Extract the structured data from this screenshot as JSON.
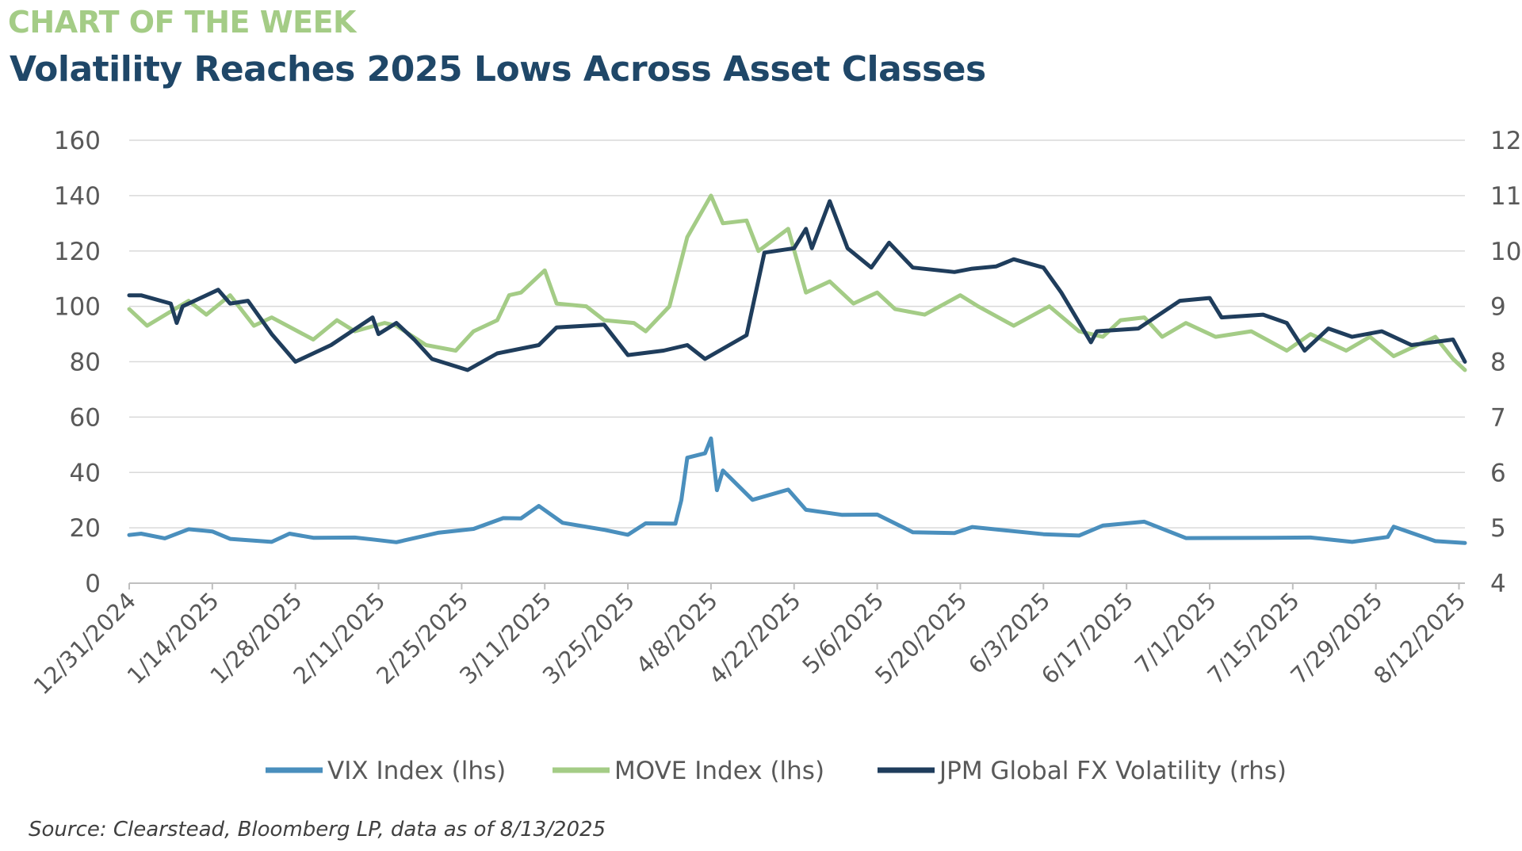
{
  "header": {
    "kicker": "CHART OF THE WEEK",
    "title": "Volatility Reaches 2025 Lows Across Asset Classes"
  },
  "footer": {
    "source": "Source: Clearstead, Bloomberg LP, data as of 8/13/2025"
  },
  "colors": {
    "vix": "#4a8fbd",
    "move": "#a4cc86",
    "fx": "#1f3d5c",
    "grid": "#d9d9d9",
    "axis_text": "#595959"
  },
  "chart_data": {
    "type": "line",
    "x_type": "date",
    "x_range": [
      "12/31/2024",
      "8/13/2025"
    ],
    "x_ticks": [
      "12/31/2024",
      "1/14/2025",
      "1/28/2025",
      "2/11/2025",
      "2/25/2025",
      "3/11/2025",
      "3/25/2025",
      "4/8/2025",
      "4/22/2025",
      "5/6/2025",
      "5/20/2025",
      "6/3/2025",
      "6/17/2025",
      "7/1/2025",
      "7/15/2025",
      "7/29/2025",
      "8/12/2025"
    ],
    "y_left": {
      "min": 0,
      "max": 160,
      "ticks": [
        0,
        20,
        40,
        60,
        80,
        100,
        120,
        140,
        160
      ]
    },
    "y_right": {
      "min": 4,
      "max": 12,
      "ticks": [
        4,
        5,
        6,
        7,
        8,
        9,
        10,
        11,
        12
      ]
    },
    "grid": true,
    "legend_position": "bottom",
    "series": [
      {
        "name": "VIX Index (lhs)",
        "axis": "left",
        "points": [
          [
            "12/31/2024",
            17.4
          ],
          [
            "1/2/2025",
            17.9
          ],
          [
            "1/6/2025",
            16.2
          ],
          [
            "1/10/2025",
            19.5
          ],
          [
            "1/14/2025",
            18.7
          ],
          [
            "1/17/2025",
            16.0
          ],
          [
            "1/24/2025",
            14.9
          ],
          [
            "1/27/2025",
            17.9
          ],
          [
            "1/31/2025",
            16.4
          ],
          [
            "2/7/2025",
            16.5
          ],
          [
            "2/10/2025",
            15.8
          ],
          [
            "2/14/2025",
            14.8
          ],
          [
            "2/21/2025",
            18.2
          ],
          [
            "2/27/2025",
            19.6
          ],
          [
            "3/4/2025",
            23.5
          ],
          [
            "3/7/2025",
            23.4
          ],
          [
            "3/10/2025",
            27.9
          ],
          [
            "3/14/2025",
            21.8
          ],
          [
            "3/21/2025",
            19.3
          ],
          [
            "3/25/2025",
            17.5
          ],
          [
            "3/28/2025",
            21.6
          ],
          [
            "4/2/2025",
            21.5
          ],
          [
            "4/3/2025",
            30.0
          ],
          [
            "4/4/2025",
            45.3
          ],
          [
            "4/7/2025",
            46.9
          ],
          [
            "4/8/2025",
            52.3
          ],
          [
            "4/9/2025",
            33.6
          ],
          [
            "4/10/2025",
            40.7
          ],
          [
            "4/15/2025",
            30.1
          ],
          [
            "4/21/2025",
            33.8
          ],
          [
            "4/24/2025",
            26.5
          ],
          [
            "4/30/2025",
            24.7
          ],
          [
            "5/6/2025",
            24.8
          ],
          [
            "5/12/2025",
            18.4
          ],
          [
            "5/19/2025",
            18.1
          ],
          [
            "5/22/2025",
            20.3
          ],
          [
            "6/3/2025",
            17.7
          ],
          [
            "6/9/2025",
            17.2
          ],
          [
            "6/13/2025",
            20.8
          ],
          [
            "6/20/2025",
            22.2
          ],
          [
            "6/27/2025",
            16.3
          ],
          [
            "7/11/2025",
            16.4
          ],
          [
            "7/18/2025",
            16.5
          ],
          [
            "7/25/2025",
            14.9
          ],
          [
            "7/31/2025",
            16.7
          ],
          [
            "8/1/2025",
            20.4
          ],
          [
            "8/8/2025",
            15.2
          ],
          [
            "8/13/2025",
            14.5
          ]
        ]
      },
      {
        "name": "MOVE Index (lhs)",
        "axis": "left",
        "points": [
          [
            "12/31/2024",
            99
          ],
          [
            "1/3/2025",
            93
          ],
          [
            "1/10/2025",
            102
          ],
          [
            "1/13/2025",
            97
          ],
          [
            "1/17/2025",
            104
          ],
          [
            "1/21/2025",
            93
          ],
          [
            "1/24/2025",
            96
          ],
          [
            "1/31/2025",
            88
          ],
          [
            "2/4/2025",
            95
          ],
          [
            "2/7/2025",
            91
          ],
          [
            "2/12/2025",
            94
          ],
          [
            "2/14/2025",
            93
          ],
          [
            "2/19/2025",
            86
          ],
          [
            "2/24/2025",
            84
          ],
          [
            "2/27/2025",
            91
          ],
          [
            "3/3/2025",
            95
          ],
          [
            "3/5/2025",
            104
          ],
          [
            "3/7/2025",
            105
          ],
          [
            "3/11/2025",
            113
          ],
          [
            "3/13/2025",
            101
          ],
          [
            "3/18/2025",
            100
          ],
          [
            "3/21/2025",
            95
          ],
          [
            "3/26/2025",
            94
          ],
          [
            "3/28/2025",
            91
          ],
          [
            "4/1/2025",
            100
          ],
          [
            "4/4/2025",
            125
          ],
          [
            "4/8/2025",
            140
          ],
          [
            "4/10/2025",
            130
          ],
          [
            "4/14/2025",
            131
          ],
          [
            "4/16/2025",
            120
          ],
          [
            "4/21/2025",
            128
          ],
          [
            "4/24/2025",
            105
          ],
          [
            "4/28/2025",
            109
          ],
          [
            "5/2/2025",
            101
          ],
          [
            "5/6/2025",
            105
          ],
          [
            "5/9/2025",
            99
          ],
          [
            "5/14/2025",
            97
          ],
          [
            "5/20/2025",
            104
          ],
          [
            "5/23/2025",
            100
          ],
          [
            "5/29/2025",
            93
          ],
          [
            "6/4/2025",
            100
          ],
          [
            "6/9/2025",
            91
          ],
          [
            "6/13/2025",
            89
          ],
          [
            "6/16/2025",
            95
          ],
          [
            "6/20/2025",
            96
          ],
          [
            "6/23/2025",
            89
          ],
          [
            "6/27/2025",
            94
          ],
          [
            "7/2/2025",
            89
          ],
          [
            "7/8/2025",
            91
          ],
          [
            "7/14/2025",
            84
          ],
          [
            "7/18/2025",
            90
          ],
          [
            "7/24/2025",
            84
          ],
          [
            "7/28/2025",
            89
          ],
          [
            "8/1/2025",
            82
          ],
          [
            "8/8/2025",
            89
          ],
          [
            "8/11/2025",
            81
          ],
          [
            "8/13/2025",
            77
          ]
        ]
      },
      {
        "name": "JPM Global FX Volatility (rhs)",
        "axis": "right",
        "points": [
          [
            "12/31/2024",
            9.2
          ],
          [
            "1/2/2025",
            9.2
          ],
          [
            "1/7/2025",
            9.05
          ],
          [
            "1/8/2025",
            8.7
          ],
          [
            "1/9/2025",
            9.0
          ],
          [
            "1/15/2025",
            9.3
          ],
          [
            "1/17/2025",
            9.05
          ],
          [
            "1/20/2025",
            9.1
          ],
          [
            "1/24/2025",
            8.5
          ],
          [
            "1/28/2025",
            8.0
          ],
          [
            "2/3/2025",
            8.3
          ],
          [
            "2/10/2025",
            8.8
          ],
          [
            "2/11/2025",
            8.5
          ],
          [
            "2/14/2025",
            8.7
          ],
          [
            "2/17/2025",
            8.4
          ],
          [
            "2/20/2025",
            8.05
          ],
          [
            "2/26/2025",
            7.85
          ],
          [
            "3/3/2025",
            8.15
          ],
          [
            "3/10/2025",
            8.3
          ],
          [
            "3/13/2025",
            8.62
          ],
          [
            "3/21/2025",
            8.67
          ],
          [
            "3/25/2025",
            8.12
          ],
          [
            "3/31/2025",
            8.2
          ],
          [
            "4/4/2025",
            8.3
          ],
          [
            "4/7/2025",
            8.05
          ],
          [
            "4/14/2025",
            8.48
          ],
          [
            "4/17/2025",
            9.97
          ],
          [
            "4/22/2025",
            10.05
          ],
          [
            "4/24/2025",
            10.4
          ],
          [
            "4/25/2025",
            10.05
          ],
          [
            "4/28/2025",
            10.9
          ],
          [
            "5/1/2025",
            10.05
          ],
          [
            "5/5/2025",
            9.7
          ],
          [
            "5/8/2025",
            10.15
          ],
          [
            "5/12/2025",
            9.7
          ],
          [
            "5/19/2025",
            9.62
          ],
          [
            "5/22/2025",
            9.68
          ],
          [
            "5/26/2025",
            9.72
          ],
          [
            "5/29/2025",
            9.85
          ],
          [
            "6/3/2025",
            9.7
          ],
          [
            "6/6/2025",
            9.25
          ],
          [
            "6/11/2025",
            8.35
          ],
          [
            "6/12/2025",
            8.55
          ],
          [
            "6/19/2025",
            8.6
          ],
          [
            "6/26/2025",
            9.1
          ],
          [
            "7/1/2025",
            9.15
          ],
          [
            "7/3/2025",
            8.8
          ],
          [
            "7/10/2025",
            8.85
          ],
          [
            "7/14/2025",
            8.7
          ],
          [
            "7/17/2025",
            8.2
          ],
          [
            "7/21/2025",
            8.6
          ],
          [
            "7/25/2025",
            8.45
          ],
          [
            "7/30/2025",
            8.55
          ],
          [
            "8/4/2025",
            8.3
          ],
          [
            "8/11/2025",
            8.4
          ],
          [
            "8/13/2025",
            8.0
          ]
        ]
      }
    ]
  }
}
